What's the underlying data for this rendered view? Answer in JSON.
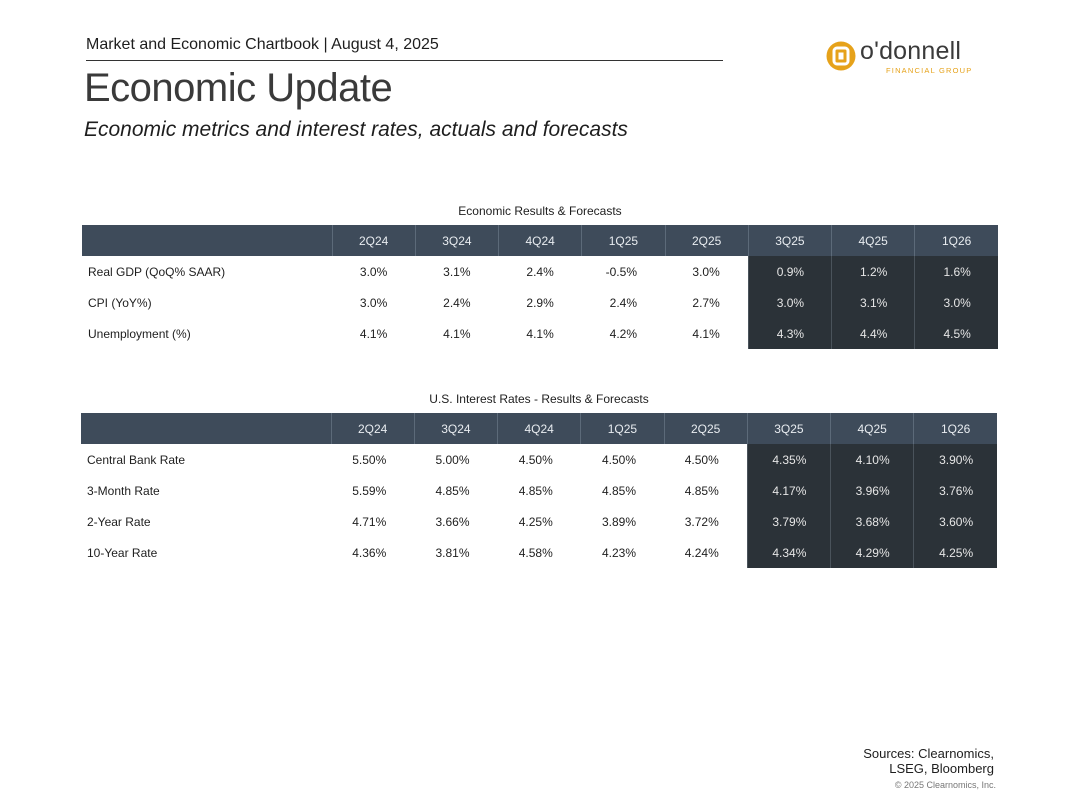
{
  "header": {
    "line": "Market and Economic Chartbook | August 4, 2025"
  },
  "title": "Economic Update",
  "subtitle": "Economic metrics and interest rates, actuals and forecasts",
  "logo": {
    "word": "o'donnell",
    "sub": "FINANCIAL GROUP",
    "accent": "#e6a21a"
  },
  "colors": {
    "header_bg": "#3e4b5a",
    "forecast_bg": "#2b3238"
  },
  "economic_table": {
    "title": "Economic Results & Forecasts",
    "columns": [
      "2Q24",
      "3Q24",
      "4Q24",
      "1Q25",
      "2Q25",
      "3Q25",
      "4Q25",
      "1Q26"
    ],
    "rows": [
      {
        "label": "Real GDP (QoQ% SAAR)",
        "values": [
          "3.0%",
          "3.1%",
          "2.4%",
          "-0.5%",
          "3.0%",
          "0.9%",
          "1.2%",
          "1.6%"
        ]
      },
      {
        "label": "CPI (YoY%)",
        "values": [
          "3.0%",
          "2.4%",
          "2.9%",
          "2.4%",
          "2.7%",
          "3.0%",
          "3.1%",
          "3.0%"
        ]
      },
      {
        "label": "Unemployment (%)",
        "values": [
          "4.1%",
          "4.1%",
          "4.1%",
          "4.2%",
          "4.1%",
          "4.3%",
          "4.4%",
          "4.5%"
        ]
      }
    ]
  },
  "rates_table": {
    "title": "U.S. Interest Rates - Results & Forecasts",
    "columns": [
      "2Q24",
      "3Q24",
      "4Q24",
      "1Q25",
      "2Q25",
      "3Q25",
      "4Q25",
      "1Q26"
    ],
    "rows": [
      {
        "label": "Central Bank Rate",
        "values": [
          "5.50%",
          "5.00%",
          "4.50%",
          "4.50%",
          "4.50%",
          "4.35%",
          "4.10%",
          "3.90%"
        ]
      },
      {
        "label": "3-Month Rate",
        "values": [
          "5.59%",
          "4.85%",
          "4.85%",
          "4.85%",
          "4.85%",
          "4.17%",
          "3.96%",
          "3.76%"
        ]
      },
      {
        "label": "2-Year Rate",
        "values": [
          "4.71%",
          "3.66%",
          "4.25%",
          "3.89%",
          "3.72%",
          "3.79%",
          "3.68%",
          "3.60%"
        ]
      },
      {
        "label": "10-Year Rate",
        "values": [
          "4.36%",
          "3.81%",
          "4.58%",
          "4.23%",
          "4.24%",
          "4.34%",
          "4.29%",
          "4.25%"
        ]
      }
    ]
  },
  "footer": {
    "sources_line1": "Sources: Clearnomics,",
    "sources_line2": "LSEG, Bloomberg",
    "copyright": "© 2025 Clearnomics, Inc."
  }
}
